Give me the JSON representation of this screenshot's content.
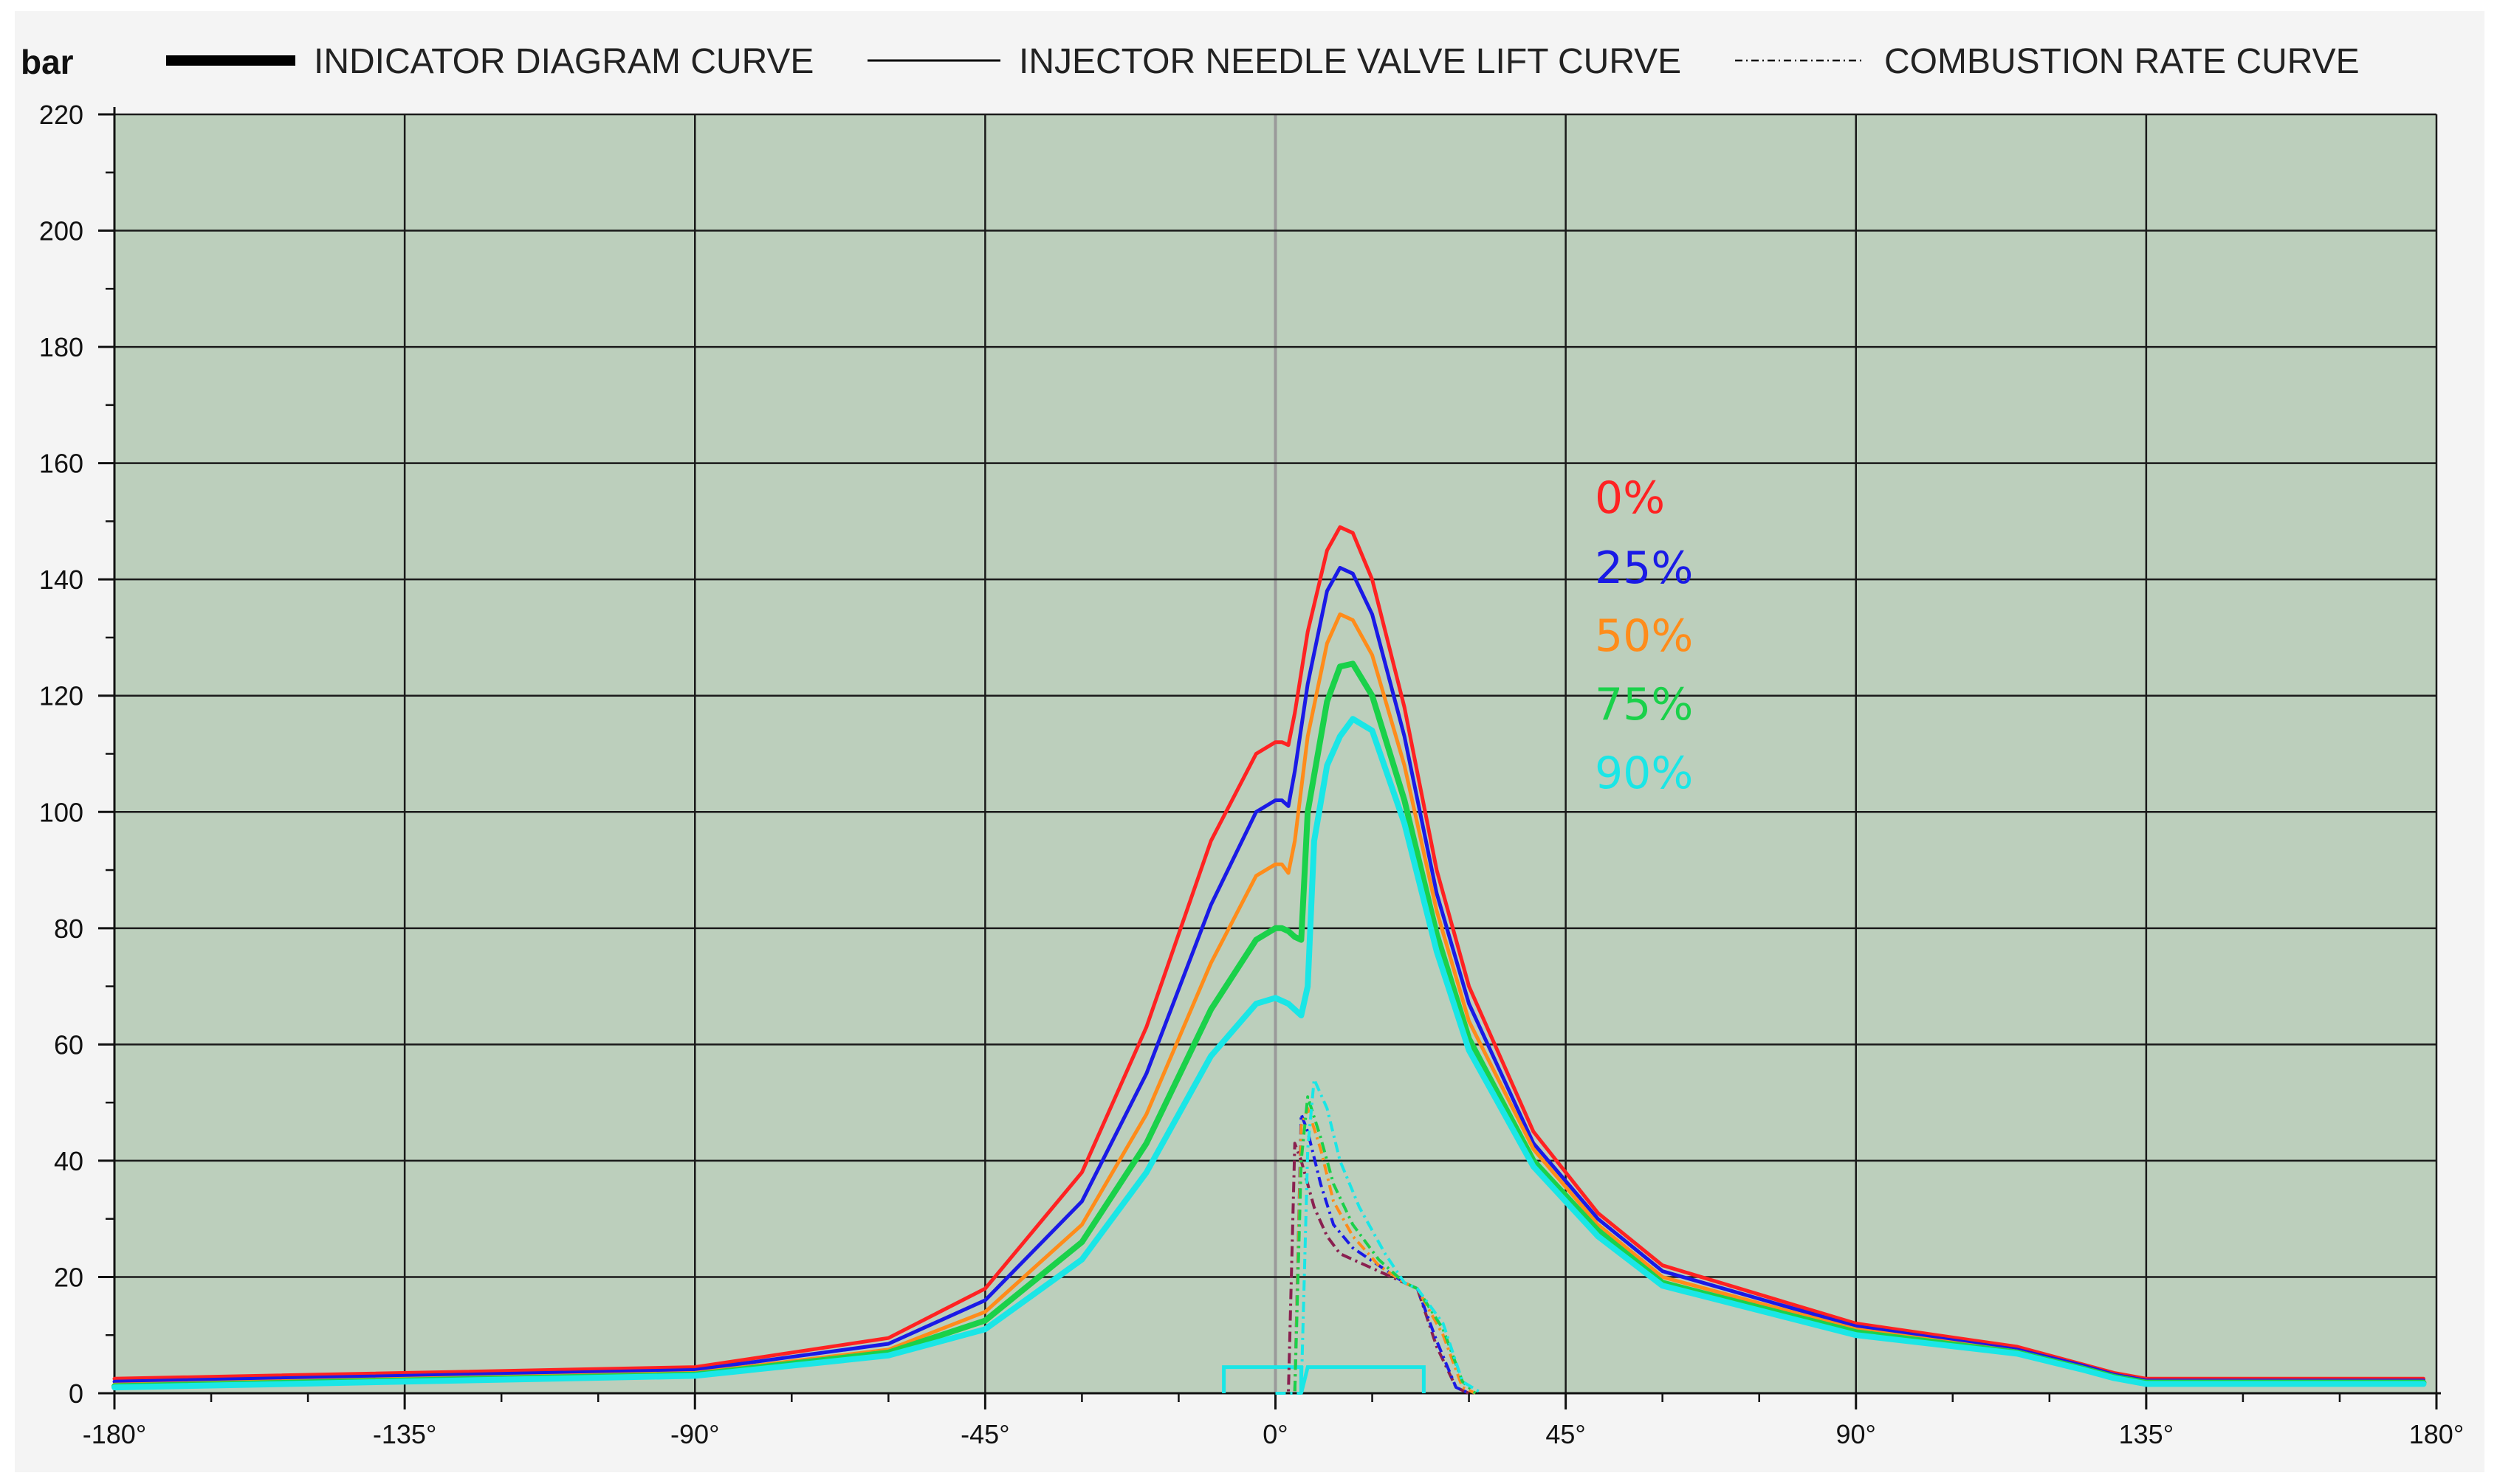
{
  "chart_data": {
    "type": "line",
    "title": "",
    "xlabel": "",
    "ylabel": "bar",
    "xlim": [
      -180,
      180
    ],
    "ylim": [
      0,
      220
    ],
    "x_ticks": [
      -180,
      -135,
      -90,
      -45,
      0,
      45,
      90,
      135,
      180
    ],
    "x_tick_labels": [
      "-180°",
      "-135°",
      "-90°",
      "-45°",
      "0°",
      "45°",
      "90°",
      "135°",
      "180°"
    ],
    "y_ticks": [
      0,
      20,
      40,
      60,
      80,
      100,
      120,
      140,
      160,
      180,
      200,
      220
    ],
    "y_tick_labels": [
      "0",
      "20",
      "40",
      "60",
      "80",
      "100",
      "120",
      "140",
      "160",
      "180",
      "200",
      "220"
    ],
    "grid": true,
    "background_color": "#bccfbc",
    "legend": {
      "placement": "top",
      "items": [
        {
          "label": "INDICATOR DIAGRAM CURVE",
          "style": "thick"
        },
        {
          "label": "INJECTOR NEEDLE VALVE LIFT CURVE",
          "style": "thin"
        },
        {
          "label": "COMBUSTION RATE CURVE",
          "style": "dash-dot"
        }
      ]
    },
    "series": [
      {
        "name": "0%",
        "color": "#ff2222",
        "stroke": 5,
        "x": [
          -180,
          -90,
          -60,
          -45,
          -30,
          -20,
          -10,
          -3,
          0,
          1,
          2,
          3,
          5,
          8,
          10,
          12,
          15,
          20,
          25,
          30,
          40,
          50,
          60,
          90,
          115,
          125,
          130,
          135,
          178
        ],
        "y": [
          2.5,
          4.5,
          9.5,
          18,
          38,
          63,
          95,
          110,
          112,
          112,
          111.5,
          117,
          131,
          145,
          149,
          148,
          140,
          118,
          90,
          70,
          45,
          31,
          22,
          12,
          8,
          5,
          3.5,
          2.5,
          2.5
        ]
      },
      {
        "name": "25%",
        "color": "#1a1ae6",
        "stroke": 5,
        "x": [
          -180,
          -90,
          -60,
          -45,
          -30,
          -20,
          -10,
          -3,
          0,
          1,
          2,
          3,
          5,
          8,
          10,
          12,
          15,
          20,
          25,
          30,
          40,
          50,
          60,
          90,
          115,
          125,
          130,
          135,
          178
        ],
        "y": [
          2.0,
          4.0,
          8.5,
          16,
          33,
          55,
          84,
          100,
          102,
          102,
          101,
          107,
          122,
          138,
          142,
          141,
          134,
          113,
          86,
          67,
          43,
          30,
          21,
          11.5,
          7.5,
          4.8,
          3.2,
          2.2,
          2.2
        ]
      },
      {
        "name": "50%",
        "color": "#ff8c1a",
        "stroke": 5,
        "x": [
          -180,
          -90,
          -60,
          -45,
          -30,
          -20,
          -10,
          -3,
          0,
          1,
          2,
          3,
          5,
          8,
          10,
          12,
          15,
          20,
          25,
          30,
          40,
          50,
          60,
          90,
          115,
          125,
          130,
          135,
          178
        ],
        "y": [
          1.5,
          3.5,
          7.5,
          14,
          29,
          48,
          74,
          89,
          91,
          91,
          89.5,
          95,
          113,
          129,
          134,
          133,
          127,
          108,
          83,
          64,
          42,
          29,
          20,
          11,
          7.2,
          4.5,
          3,
          2,
          2
        ]
      },
      {
        "name": "75%",
        "color": "#1ad14a",
        "stroke": 8,
        "x": [
          -180,
          -90,
          -60,
          -45,
          -30,
          -20,
          -10,
          -3,
          0,
          1,
          2,
          3,
          4,
          5,
          8,
          10,
          12,
          15,
          20,
          25,
          30,
          40,
          50,
          60,
          90,
          115,
          125,
          130,
          135,
          178
        ],
        "y": [
          1.2,
          3.2,
          7,
          12.5,
          26,
          43,
          66,
          78,
          80,
          80,
          79.5,
          78.5,
          78,
          100,
          119,
          125,
          125.5,
          120,
          102,
          79,
          61,
          40,
          28,
          19,
          10.5,
          7,
          4.3,
          2.8,
          1.8,
          1.8
        ]
      },
      {
        "name": "90%",
        "color": "#1ae6e6",
        "stroke": 8,
        "x": [
          -180,
          -90,
          -60,
          -45,
          -30,
          -20,
          -10,
          -3,
          0,
          2,
          4,
          5,
          6,
          8,
          10,
          12,
          15,
          20,
          25,
          30,
          40,
          50,
          60,
          90,
          115,
          125,
          130,
          135,
          178
        ],
        "y": [
          1,
          3,
          6.5,
          11,
          23,
          38,
          58,
          67,
          68,
          67,
          65,
          70,
          95,
          108,
          113,
          116,
          114,
          98,
          76,
          59,
          39,
          27,
          18.5,
          10,
          6.8,
          4.1,
          2.6,
          1.6,
          1.6
        ]
      }
    ],
    "combustion_rate_curves": [
      {
        "color": "#8a2050",
        "x": [
          0,
          2,
          3,
          4,
          6,
          8,
          10,
          14,
          20,
          22,
          25,
          28,
          30
        ],
        "y": [
          0,
          0,
          43,
          40,
          32,
          27,
          24,
          22,
          19,
          18,
          8,
          1,
          0
        ]
      },
      {
        "color": "#1a1ae6",
        "x": [
          0,
          3,
          4,
          5,
          7,
          9,
          12,
          16,
          20,
          22,
          25,
          28,
          30
        ],
        "y": [
          0,
          0,
          48,
          45,
          36,
          29,
          25,
          22,
          19,
          18,
          9,
          1,
          0
        ]
      },
      {
        "color": "#ff8c1a",
        "x": [
          0,
          3,
          4,
          5,
          7,
          9,
          12,
          16,
          20,
          22,
          26,
          29,
          31
        ],
        "y": [
          0,
          0,
          46,
          49,
          42,
          33,
          27,
          22,
          19,
          18,
          10,
          1,
          0
        ]
      },
      {
        "color": "#1ad14a",
        "x": [
          0,
          3,
          4,
          5,
          7,
          9,
          12,
          16,
          20,
          22,
          26,
          29,
          31
        ],
        "y": [
          0,
          0,
          40,
          51,
          44,
          36,
          29,
          23,
          19,
          18,
          11,
          2,
          0
        ]
      },
      {
        "color": "#1ae6e6",
        "x": [
          0,
          4,
          5,
          6,
          8,
          10,
          13,
          17,
          20,
          22,
          26,
          29,
          32
        ],
        "y": [
          0,
          0,
          42,
          54,
          49,
          40,
          32,
          24,
          19,
          18,
          12,
          2,
          0
        ]
      }
    ],
    "needle_lift_curve": {
      "color": "#1ae6e6",
      "x": [
        -8,
        -8,
        0,
        2,
        4,
        4,
        5,
        20,
        22,
        23,
        23
      ],
      "y": [
        0,
        4.5,
        4.5,
        4.5,
        4.5,
        0,
        4.5,
        4.5,
        4.5,
        4.5,
        0
      ]
    }
  }
}
